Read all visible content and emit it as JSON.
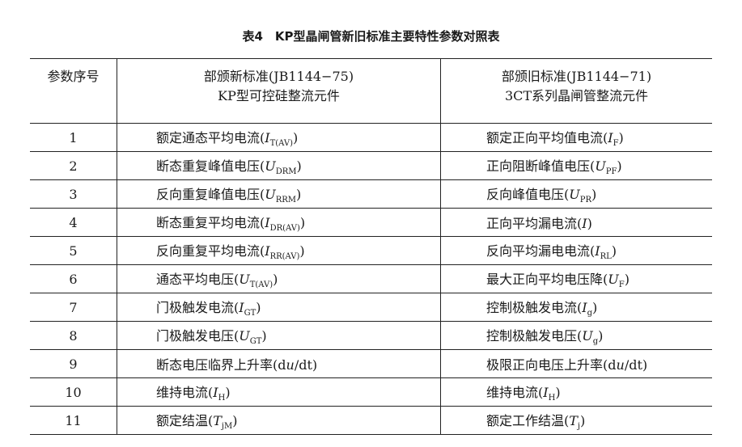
{
  "title": "表4　KP型晶闸管新旧标准主要特性参数对照表",
  "header": {
    "col0": "参数序号",
    "col1_line1": "部颁新标准(JB1144−75)",
    "col1_line2": "KP型可控硅整流元件",
    "col2_line1": "部颁旧标准(JB1144−71)",
    "col2_line2": "3CT系列晶闸管整流元件"
  },
  "rows": [
    {
      "no": "1",
      "new": [
        [
          "额定通态平均电流(",
          ""
        ],
        [
          "I",
          "i"
        ],
        [
          "T(AV)",
          "s"
        ],
        [
          ")",
          ""
        ]
      ],
      "old": [
        [
          "额定正向平均值电流(",
          ""
        ],
        [
          "I",
          "i"
        ],
        [
          "F",
          "s"
        ],
        [
          ")",
          ""
        ]
      ]
    },
    {
      "no": "2",
      "new": [
        [
          "断态重复峰值电压(",
          ""
        ],
        [
          "U",
          "i"
        ],
        [
          "DRM",
          "s"
        ],
        [
          ")",
          ""
        ]
      ],
      "old": [
        [
          "正向阻断峰值电压(",
          ""
        ],
        [
          "U",
          "i"
        ],
        [
          "PF",
          "s"
        ],
        [
          ")",
          ""
        ]
      ]
    },
    {
      "no": "3",
      "new": [
        [
          "反向重复峰值电压(",
          ""
        ],
        [
          "U",
          "i"
        ],
        [
          "RRM",
          "s"
        ],
        [
          ")",
          ""
        ]
      ],
      "old": [
        [
          "反向峰值电压(",
          ""
        ],
        [
          "U",
          "i"
        ],
        [
          "PR",
          "s"
        ],
        [
          ")",
          ""
        ]
      ]
    },
    {
      "no": "4",
      "new": [
        [
          "断态重复平均电流(",
          ""
        ],
        [
          "I",
          "i"
        ],
        [
          "DR(AV)",
          "s"
        ],
        [
          ")",
          ""
        ]
      ],
      "old": [
        [
          "正向平均漏电流(",
          ""
        ],
        [
          "I",
          "i"
        ],
        [
          ")",
          ""
        ]
      ]
    },
    {
      "no": "5",
      "new": [
        [
          "反向重复平均电流(",
          ""
        ],
        [
          "I",
          "i"
        ],
        [
          "RR(AV)",
          "s"
        ],
        [
          ")",
          ""
        ]
      ],
      "old": [
        [
          "反向平均漏电电流(",
          ""
        ],
        [
          "I",
          "i"
        ],
        [
          "RL",
          "s"
        ],
        [
          ")",
          ""
        ]
      ]
    },
    {
      "no": "6",
      "new": [
        [
          "通态平均电压(",
          ""
        ],
        [
          "U",
          "i"
        ],
        [
          "T(AV)",
          "s"
        ],
        [
          ")",
          ""
        ]
      ],
      "old": [
        [
          "最大正向平均电压降(",
          ""
        ],
        [
          "U",
          "i"
        ],
        [
          "F",
          "s"
        ],
        [
          ")",
          ""
        ]
      ]
    },
    {
      "no": "7",
      "new": [
        [
          "门极触发电流(",
          ""
        ],
        [
          "I",
          "i"
        ],
        [
          "GT",
          "s"
        ],
        [
          ")",
          ""
        ]
      ],
      "old": [
        [
          "控制极触发电流(",
          ""
        ],
        [
          "I",
          "i"
        ],
        [
          "g",
          "s"
        ],
        [
          ")",
          ""
        ]
      ]
    },
    {
      "no": "8",
      "new": [
        [
          "门极触发电压(",
          ""
        ],
        [
          "U",
          "i"
        ],
        [
          "GT",
          "s"
        ],
        [
          ")",
          ""
        ]
      ],
      "old": [
        [
          "控制极触发电压(",
          ""
        ],
        [
          "U",
          "i"
        ],
        [
          "g",
          "s"
        ],
        [
          ")",
          ""
        ]
      ]
    },
    {
      "no": "9",
      "new": [
        [
          "断态电压临界上升率(d",
          ""
        ],
        [
          "u",
          "i"
        ],
        [
          "/dt)",
          ""
        ]
      ],
      "old": [
        [
          "极限正向电压上升率(d",
          ""
        ],
        [
          "u",
          "i"
        ],
        [
          "/dt)",
          ""
        ]
      ]
    },
    {
      "no": "10",
      "new": [
        [
          "维持电流(",
          ""
        ],
        [
          "I",
          "i"
        ],
        [
          "H",
          "s"
        ],
        [
          ")",
          ""
        ]
      ],
      "old": [
        [
          "维持电流(",
          ""
        ],
        [
          "I",
          "i"
        ],
        [
          "H",
          "s"
        ],
        [
          ")",
          ""
        ]
      ]
    },
    {
      "no": "11",
      "new": [
        [
          "额定结温(",
          ""
        ],
        [
          "T",
          "i"
        ],
        [
          "jM",
          "s"
        ],
        [
          ")",
          ""
        ]
      ],
      "old": [
        [
          "额定工作结温(",
          ""
        ],
        [
          "T",
          "i"
        ],
        [
          "j",
          "s"
        ],
        [
          ")",
          ""
        ]
      ]
    }
  ]
}
